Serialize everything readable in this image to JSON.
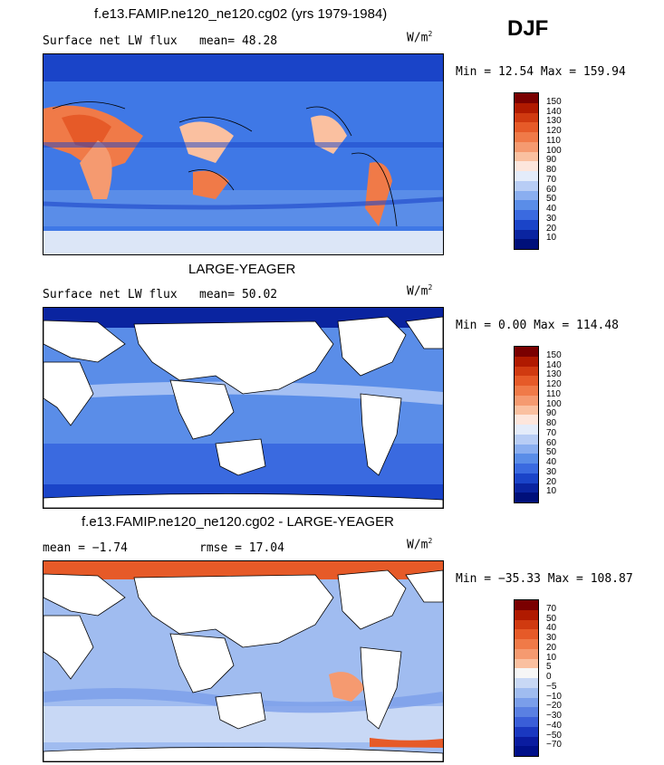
{
  "season": "DJF",
  "units_base": "W/m",
  "units_exp": "2",
  "panels": [
    {
      "title": "f.e13.FAMIP.ne120_ne120.cg02 (yrs 1979-1984)",
      "subtitle_left": "Surface net LW flux",
      "stat_text": "mean=  48.28",
      "minmax": "Min =  12.54 Max = 159.94",
      "colorbar_levels": [
        "150",
        "140",
        "130",
        "120",
        "110",
        "100",
        "90",
        "80",
        "70",
        "60",
        "50",
        "40",
        "30",
        "20",
        "10"
      ]
    },
    {
      "title": "LARGE-YEAGER",
      "subtitle_left": "Surface net LW flux",
      "stat_text": "mean=  50.02",
      "minmax": "Min =   0.00 Max = 114.48",
      "colorbar_levels": [
        "150",
        "140",
        "130",
        "120",
        "110",
        "100",
        "90",
        "80",
        "70",
        "60",
        "50",
        "40",
        "30",
        "20",
        "10"
      ]
    },
    {
      "title": "f.e13.FAMIP.ne120_ne120.cg02 - LARGE-YEAGER",
      "subtitle_left": "mean =  −1.74",
      "stat_text": "rmse =  17.04",
      "minmax": "Min = −35.33 Max = 108.87",
      "colorbar_levels": [
        "70",
        "50",
        "40",
        "30",
        "20",
        "10",
        "5",
        "0",
        "−5",
        "−10",
        "−20",
        "−30",
        "−40",
        "−50",
        "−70"
      ]
    }
  ],
  "colors": {
    "abs_scale": [
      "#7a0000",
      "#b01a00",
      "#d03a10",
      "#e65a28",
      "#f07a48",
      "#f59a70",
      "#fac0a0",
      "#fde6dc",
      "#e4ecfa",
      "#b8cdf5",
      "#8aaef0",
      "#5a8de8",
      "#3a6ae0",
      "#1a44c8",
      "#0a24a0",
      "#00107a"
    ],
    "diff_scale": [
      "#7a0000",
      "#b01a00",
      "#d03a10",
      "#e65a28",
      "#f07a48",
      "#f59a70",
      "#fac0a0",
      "#f6f6f6",
      "#c8d8f5",
      "#a0bcf0",
      "#7a9eea",
      "#5a80e2",
      "#3a5ed8",
      "#1a38c0",
      "#0a1ca0",
      "#00108a"
    ],
    "land": "#ffffff",
    "coast": "#000000"
  }
}
